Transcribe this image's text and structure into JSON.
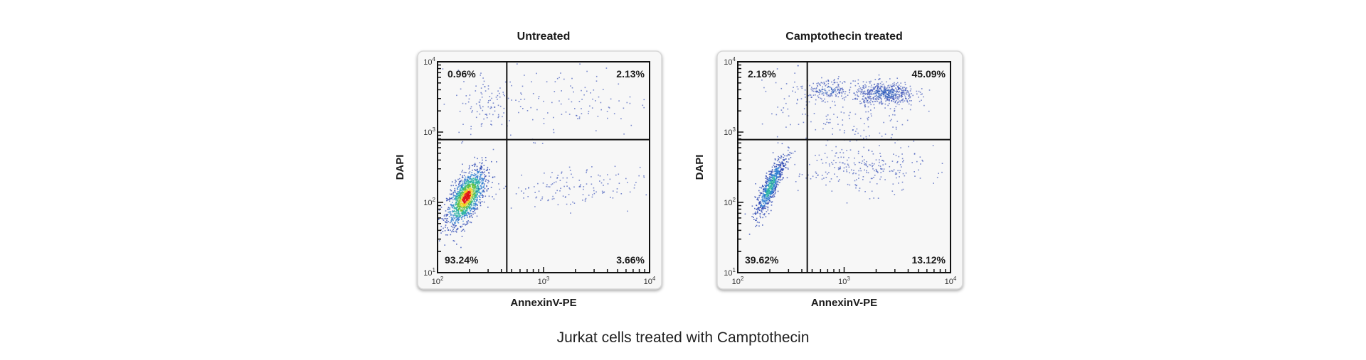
{
  "caption": "Jurkat cells treated with Camptothecin",
  "chart_data": [
    {
      "type": "scatter",
      "title": "Untreated",
      "xlabel": "AnnexinV-PE",
      "ylabel": "DAPI",
      "xscale": "log",
      "yscale": "log",
      "xlim": [
        100,
        10000
      ],
      "ylim": [
        10,
        10000
      ],
      "x_ticks": [
        "10^2",
        "10^3",
        "10^4"
      ],
      "y_ticks": [
        "10^1",
        "10^2",
        "10^3",
        "10^4"
      ],
      "gate": {
        "x": 450,
        "y": 780
      },
      "quadrants": {
        "upper_left": "0.96%",
        "upper_right": "2.13%",
        "lower_left": "93.24%",
        "lower_right": "3.66%"
      },
      "populations": [
        {
          "x": 185,
          "y": 120,
          "share": 0.8,
          "sx": 0.09,
          "sy": 0.2,
          "rho": 0.6
        },
        {
          "x": 1600,
          "y": 160,
          "share": 0.08,
          "sx": 0.35,
          "sy": 0.15,
          "rho": 0
        },
        {
          "x": 1400,
          "y": 2800,
          "share": 0.07,
          "sx": 0.45,
          "sy": 0.25,
          "rho": 0
        },
        {
          "x": 300,
          "y": 2500,
          "share": 0.05,
          "sx": 0.15,
          "sy": 0.25,
          "rho": 0
        }
      ]
    },
    {
      "type": "scatter",
      "title": "Camptothecin treated",
      "xlabel": "AnnexinV-PE",
      "ylabel": "DAPI",
      "xscale": "log",
      "yscale": "log",
      "xlim": [
        100,
        10000
      ],
      "ylim": [
        10,
        10000
      ],
      "x_ticks": [
        "10^2",
        "10^3",
        "10^4"
      ],
      "y_ticks": [
        "10^1",
        "10^2",
        "10^3",
        "10^4"
      ],
      "gate": {
        "x": 450,
        "y": 780
      },
      "quadrants": {
        "upper_left": "2.18%",
        "upper_right": "45.09%",
        "lower_left": "39.62%",
        "lower_right": "13.12%"
      },
      "populations": [
        {
          "x": 200,
          "y": 170,
          "share": 0.38,
          "sx": 0.07,
          "sy": 0.22,
          "rho": 0.85
        },
        {
          "x": 2400,
          "y": 3600,
          "share": 0.3,
          "sx": 0.14,
          "sy": 0.08,
          "rho": 0
        },
        {
          "x": 700,
          "y": 4000,
          "share": 0.1,
          "sx": 0.12,
          "sy": 0.07,
          "rho": 0
        },
        {
          "x": 1300,
          "y": 1500,
          "share": 0.07,
          "sx": 0.3,
          "sy": 0.25,
          "rho": 0
        },
        {
          "x": 1400,
          "y": 300,
          "share": 0.13,
          "sx": 0.3,
          "sy": 0.17,
          "rho": 0
        },
        {
          "x": 300,
          "y": 2500,
          "share": 0.02,
          "sx": 0.12,
          "sy": 0.25,
          "rho": 0
        }
      ]
    }
  ],
  "colors": {
    "density_low": "#2440b0",
    "density_mid": "#22b0a0",
    "density_high": "#e01010",
    "panel_bg": "#f7f7f7"
  }
}
